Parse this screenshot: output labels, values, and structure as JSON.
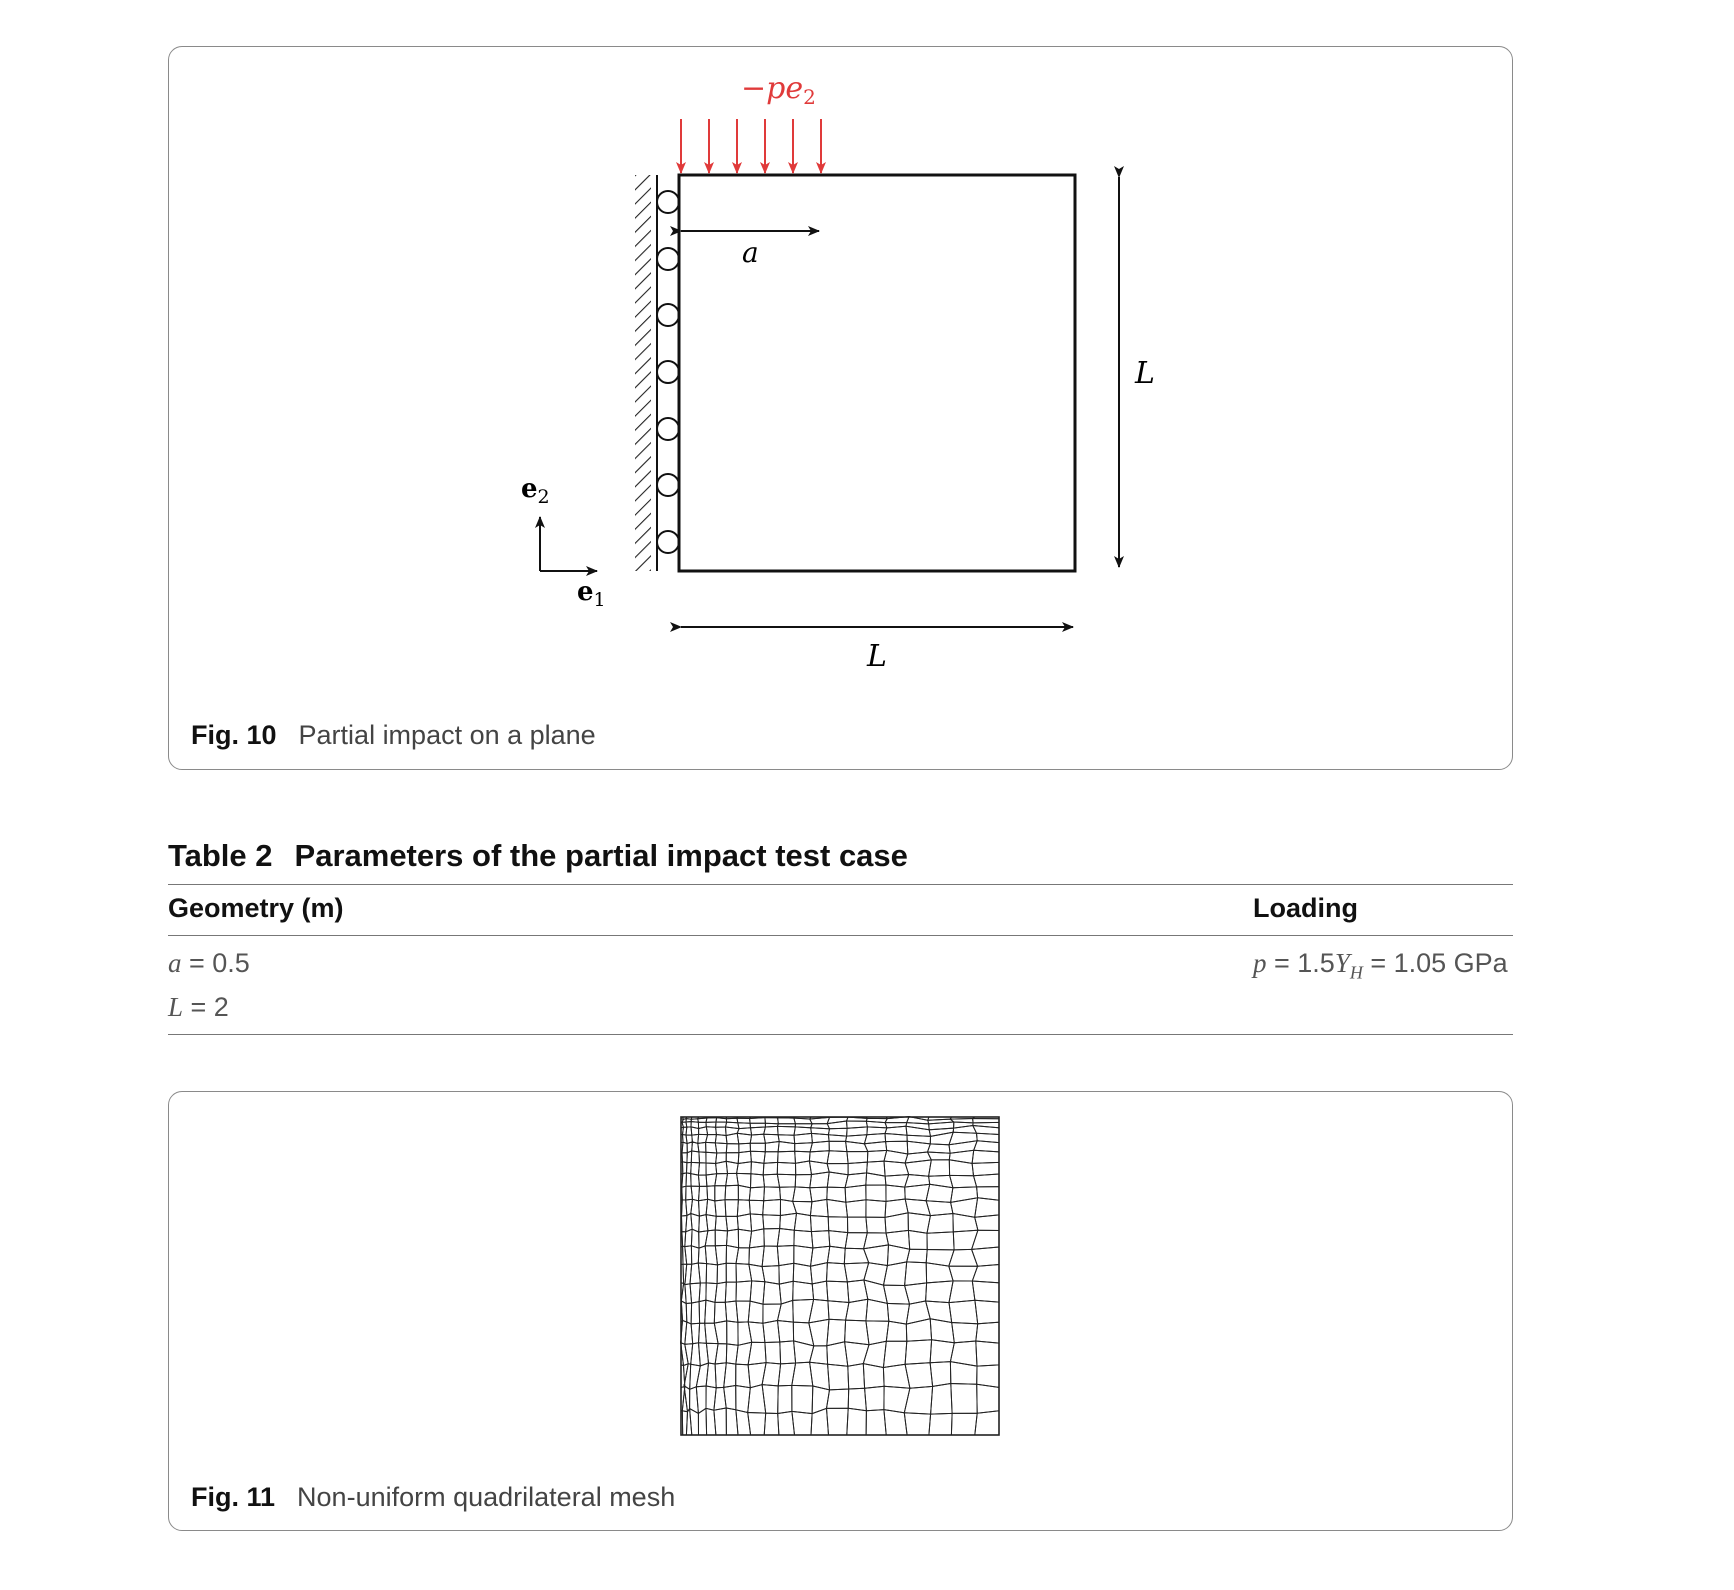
{
  "figure10": {
    "load_label": "−pe",
    "load_subscript": "2",
    "dim_a_label": "a",
    "dim_L_vertical_label": "L",
    "dim_L_horizontal_label": "L",
    "axis_e2_label": "e",
    "axis_e2_subscript": "2",
    "axis_e1_label": "e",
    "axis_e1_subscript": "1",
    "load_color": "#e03a3a",
    "caption_number": "Fig. 10",
    "caption_text": "Partial impact on a plane"
  },
  "table2": {
    "number": "Table 2",
    "title": "Parameters of the partial impact test case",
    "col_geometry": "Geometry (m)",
    "col_loading": "Loading",
    "rows": [
      {
        "geometry": "a = 0.5",
        "loading": "p = 1.5Yₕ = 1.05 GPa"
      },
      {
        "geometry": "L = 2",
        "loading": ""
      }
    ],
    "loading_parts": {
      "p": "p",
      "eq1": " = 1.5",
      "Y": "Y",
      "sub": "H",
      "rest": " = 1.05 GPa"
    },
    "geom_parts": [
      {
        "var": "a",
        "rest": " = 0.5"
      },
      {
        "var": "L",
        "rest": " = 2"
      }
    ]
  },
  "figure11": {
    "caption_number": "Fig. 11",
    "caption_text": "Non-uniform quadrilateral mesh"
  }
}
